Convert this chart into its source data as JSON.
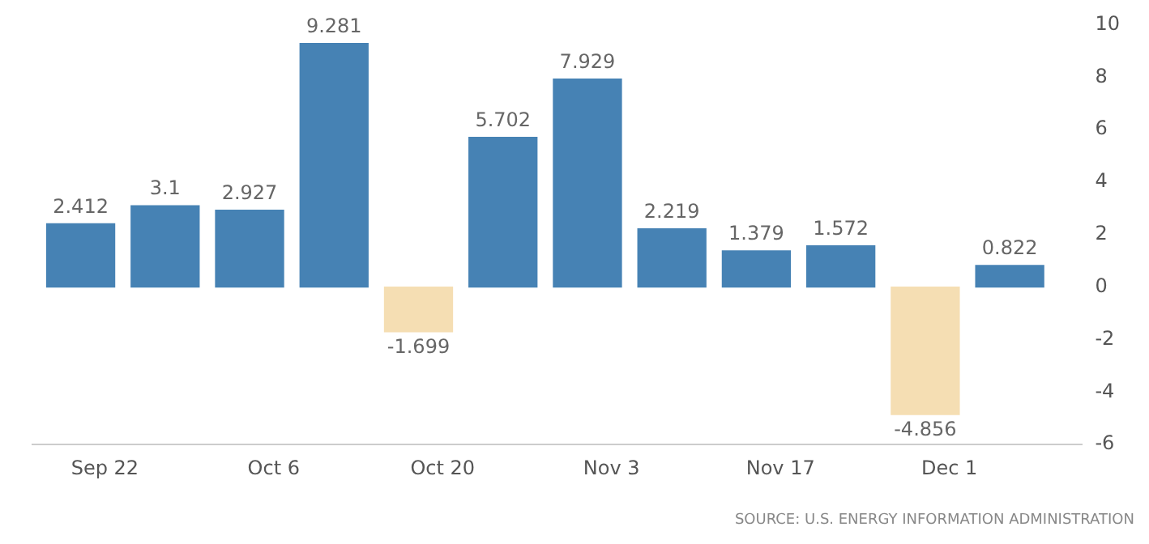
{
  "chart_data": {
    "type": "bar",
    "x": [
      "--09-20",
      "--09-27",
      "--10-04",
      "--10-11",
      "--10-18",
      "--10-25",
      "--11-01",
      "--11-08",
      "--11-15",
      "--11-22",
      "--11-29",
      "--12-06"
    ],
    "values": [
      2.412,
      3.1,
      2.927,
      9.281,
      -1.699,
      5.702,
      7.929,
      2.219,
      1.379,
      1.572,
      -4.856,
      0.822
    ],
    "colors": [
      "#4682b4",
      "#4682b4",
      "#4682b4",
      "#4682b4",
      "#f5deb3",
      "#4682b4",
      "#4682b4",
      "#4682b4",
      "#4682b4",
      "#4682b4",
      "#f5deb3",
      "#4682b4"
    ],
    "data_labels": true,
    "xlim": [
      "--09-16",
      "--12-12"
    ],
    "xticks": [
      {
        "value": "--09-22",
        "label": "Sep 22"
      },
      {
        "value": "--10-06",
        "label": "Oct 6"
      },
      {
        "value": "--10-20",
        "label": "Oct 20"
      },
      {
        "value": "--11-03",
        "label": "Nov 3"
      },
      {
        "value": "--11-17",
        "label": "Nov 17"
      },
      {
        "value": "--12-01",
        "label": "Dec 1"
      }
    ],
    "ylim": [
      -6,
      10
    ],
    "yticks": [
      -6,
      -4,
      -2,
      0,
      2,
      4,
      6,
      8,
      10
    ],
    "grid": false,
    "legend": false,
    "annotations": [
      "SOURCE: U.S. ENERGY INFORMATION ADMINISTRATION"
    ]
  }
}
